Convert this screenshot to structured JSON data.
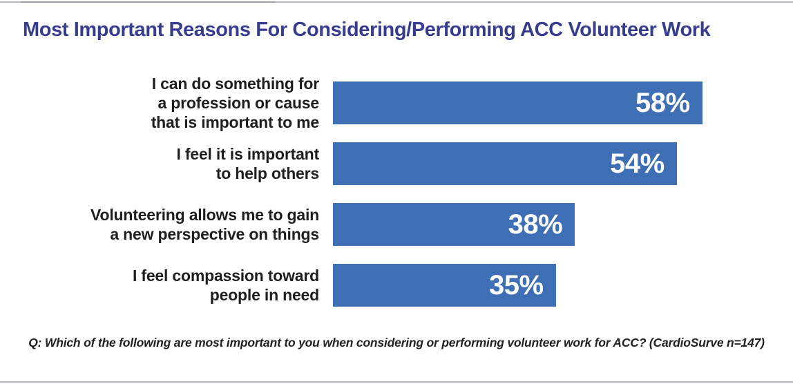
{
  "page": {
    "title": "Most Important Reasons For Considering/Performing ACC Volunteer Work",
    "footnote": "Q: Which of the following are most important to you when considering or performing volunteer work for ACC? (CardioSurve n=147)"
  },
  "colors": {
    "bar": "#3E6FB5",
    "title": "#373C8D",
    "category_text": "#1E1E1E",
    "value_text": "#FFFFFF",
    "rule": "#B5B8BE",
    "rule_dark": "#9BA0A8"
  },
  "chart_data": {
    "type": "bar",
    "orientation": "horizontal",
    "title": "Most Important Reasons For Considering/Performing ACC Volunteer Work",
    "categories": [
      "I can do something for a profession or cause that is important to me",
      "I feel it is important to help others",
      "Volunteering allows me to gain a new perspective on things",
      "I feel compassion toward people in need"
    ],
    "category_display": [
      "I can do something for\na profession or cause\nthat is important to me",
      "I feel it is important\nto help others",
      "Volunteering allows me to gain\na new perspective on things",
      "I feel compassion toward\npeople in need"
    ],
    "values": [
      58,
      54,
      38,
      35
    ],
    "value_labels": [
      "58%",
      "54%",
      "38%",
      "35%"
    ],
    "unit": "%",
    "xlim": [
      0,
      62.5
    ],
    "grid": false,
    "legend": false,
    "value_label_position": "inside-end",
    "footnote": "Q: Which of the following are most important to you when considering or performing volunteer work for ACC? (CardioSurve n=147)"
  }
}
